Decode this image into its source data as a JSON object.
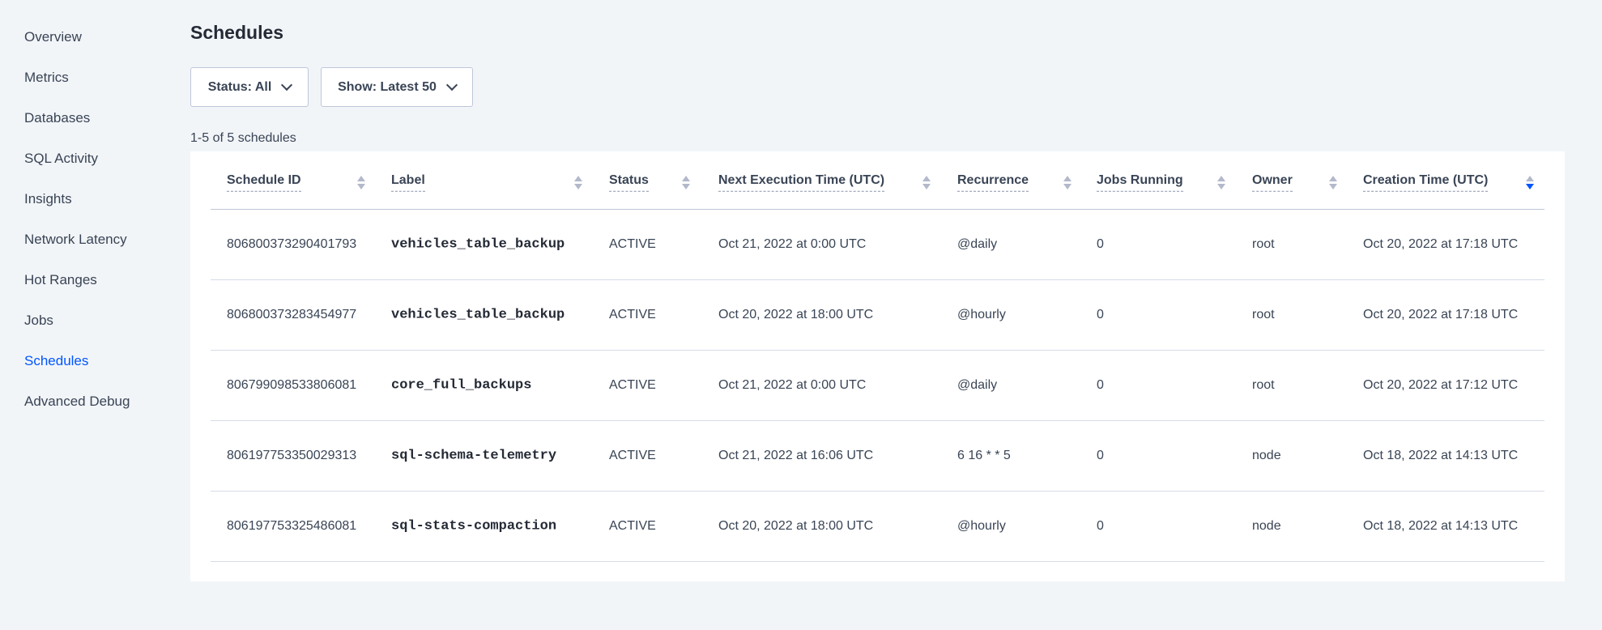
{
  "sidebar": {
    "items": [
      {
        "label": "Overview"
      },
      {
        "label": "Metrics"
      },
      {
        "label": "Databases"
      },
      {
        "label": "SQL Activity"
      },
      {
        "label": "Insights"
      },
      {
        "label": "Network Latency"
      },
      {
        "label": "Hot Ranges"
      },
      {
        "label": "Jobs"
      },
      {
        "label": "Schedules",
        "active": true
      },
      {
        "label": "Advanced Debug"
      }
    ]
  },
  "page": {
    "title": "Schedules",
    "status_filter": "Status: All",
    "show_filter": "Show: Latest 50",
    "count": "1-5 of 5 schedules"
  },
  "colors": {
    "accent": "#0055ff"
  },
  "table": {
    "columns": [
      "Schedule ID",
      "Label",
      "Status",
      "Next Execution Time (UTC)",
      "Recurrence",
      "Jobs Running",
      "Owner",
      "Creation Time (UTC)"
    ],
    "sorted_column": "Creation Time (UTC)",
    "sort_direction": "descending",
    "rows": [
      [
        "806800373290401793",
        "vehicles_table_backup",
        "ACTIVE",
        "Oct 21, 2022 at 0:00 UTC",
        "@daily",
        "0",
        "root",
        "Oct 20, 2022 at 17:18 UTC"
      ],
      [
        "806800373283454977",
        "vehicles_table_backup",
        "ACTIVE",
        "Oct 20, 2022 at 18:00 UTC",
        "@hourly",
        "0",
        "root",
        "Oct 20, 2022 at 17:18 UTC"
      ],
      [
        "806799098533806081",
        "core_full_backups",
        "ACTIVE",
        "Oct 21, 2022 at 0:00 UTC",
        "@daily",
        "0",
        "root",
        "Oct 20, 2022 at 17:12 UTC"
      ],
      [
        "806197753350029313",
        "sql-schema-telemetry",
        "ACTIVE",
        "Oct 21, 2022 at 16:06 UTC",
        "6 16 * * 5",
        "0",
        "node",
        "Oct 18, 2022 at 14:13 UTC"
      ],
      [
        "806197753325486081",
        "sql-stats-compaction",
        "ACTIVE",
        "Oct 20, 2022 at 18:00 UTC",
        "@hourly",
        "0",
        "node",
        "Oct 18, 2022 at 14:13 UTC"
      ]
    ]
  }
}
